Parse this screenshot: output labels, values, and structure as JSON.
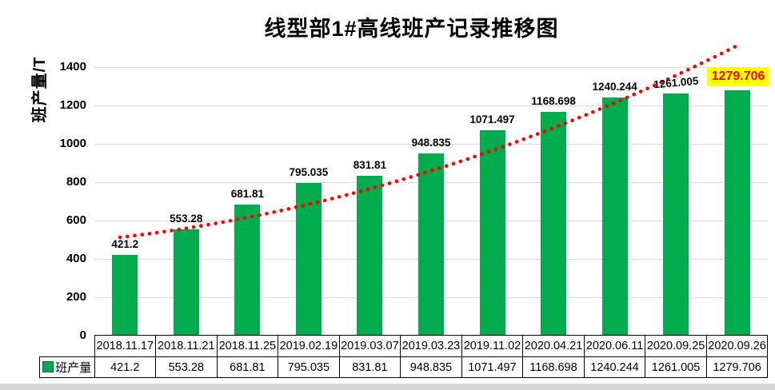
{
  "chart_data": {
    "type": "bar",
    "title": "线型部1#高线班产记录推移图",
    "ylabel": "班产量/T",
    "xlabel": "",
    "series_name": "班产量",
    "categories": [
      "2018.11.17",
      "2018.11.21",
      "2018.11.25",
      "2019.02.19",
      "2019.03.07",
      "2019.03.23",
      "2019.11.02",
      "2020.04.21",
      "2020.06.11",
      "2020.09.25",
      "2020.09.26"
    ],
    "values": [
      421.2,
      553.28,
      681.81,
      795.035,
      831.81,
      948.835,
      1071.497,
      1168.698,
      1240.244,
      1261.005,
      1279.706
    ],
    "yticks": [
      0,
      200,
      400,
      600,
      800,
      1000,
      1200,
      1400
    ],
    "ylim": [
      0,
      1500
    ],
    "grid": true,
    "legend_position": "bottom-table-left",
    "trendline": {
      "shape": "curved-upward",
      "style": "dotted",
      "color": "#FF0000"
    },
    "highlight": {
      "index": 10,
      "label": "1279.706",
      "bg": "#FFFF00",
      "text_color": "#FF0000"
    }
  },
  "colors": {
    "bar": "#00AC4E",
    "legend_border": "#0B6B2F",
    "grid": "#D9D9D9",
    "table_border": "#000000",
    "trend": "#FF0000",
    "highlight_bg": "#FFFF00",
    "highlight_text": "#FF0000",
    "window_strip": "#D5D5D5"
  }
}
